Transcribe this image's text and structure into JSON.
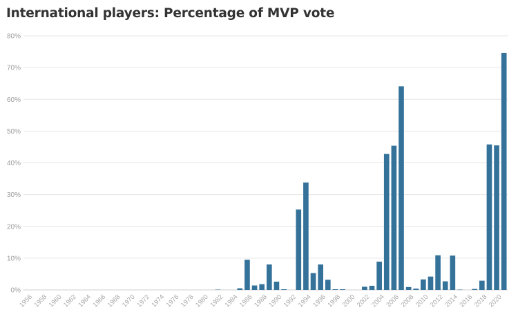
{
  "chart_data": {
    "type": "bar",
    "title": "International players: Percentage of MVP vote",
    "xlabel": "",
    "ylabel": "",
    "ylim": [
      0,
      80
    ],
    "yticks": [
      "0%",
      "10%",
      "20%",
      "30%",
      "40%",
      "50%",
      "60%",
      "70%",
      "80%"
    ],
    "grid": true,
    "legend": "none",
    "bar_color": "#35729a",
    "categories": [
      1956,
      1957,
      1958,
      1959,
      1960,
      1961,
      1962,
      1963,
      1964,
      1965,
      1966,
      1967,
      1968,
      1969,
      1970,
      1971,
      1972,
      1973,
      1974,
      1975,
      1976,
      1977,
      1978,
      1979,
      1980,
      1981,
      1982,
      1983,
      1984,
      1985,
      1986,
      1987,
      1988,
      1989,
      1990,
      1991,
      1992,
      1993,
      1994,
      1995,
      1996,
      1997,
      1998,
      1999,
      2000,
      2001,
      2002,
      2003,
      2004,
      2005,
      2006,
      2007,
      2008,
      2009,
      2010,
      2011,
      2012,
      2013,
      2014,
      2015,
      2016,
      2017,
      2018,
      2019,
      2020,
      2021
    ],
    "xtick_labels": [
      "1956",
      "1958",
      "1960",
      "1962",
      "1964",
      "1966",
      "1968",
      "1970",
      "1972",
      "1974",
      "1976",
      "1978",
      "1980",
      "1982",
      "1984",
      "1986",
      "1988",
      "1990",
      "1992",
      "1994",
      "1996",
      "1998",
      "2000",
      "2002",
      "2004",
      "2006",
      "2008",
      "2010",
      "2012",
      "2014",
      "2016",
      "2018",
      "2020"
    ],
    "values": [
      0,
      0,
      0,
      0,
      0,
      0,
      0,
      0,
      0,
      0,
      0,
      0,
      0,
      0,
      0,
      0,
      0,
      0,
      0,
      0,
      0,
      0,
      0,
      0,
      0,
      0,
      0.1,
      0,
      0,
      0.5,
      9.5,
      1.4,
      1.8,
      8.0,
      2.6,
      0.2,
      0,
      25.3,
      33.8,
      5.3,
      8.0,
      3.2,
      0.2,
      0.2,
      0,
      0,
      1.0,
      1.3,
      8.9,
      42.8,
      45.4,
      64.1,
      0.9,
      0.4,
      3.3,
      4.2,
      10.9,
      2.7,
      10.8,
      0.1,
      0,
      0.3,
      2.9,
      45.8,
      45.5,
      74.6
    ]
  }
}
